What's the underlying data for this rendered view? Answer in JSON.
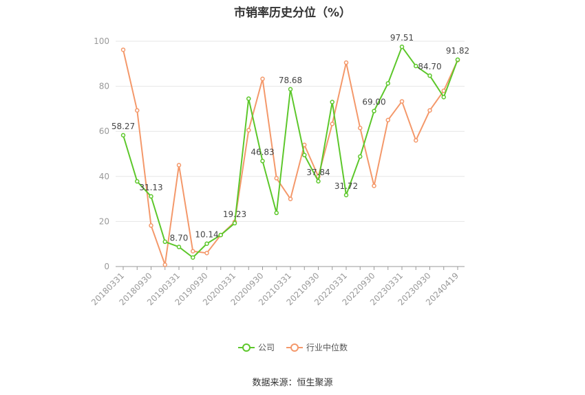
{
  "title": "市销率历史分位（%）",
  "source": "数据来源：恒生聚源",
  "colors": {
    "company": "#5cc72a",
    "industry": "#f4986a",
    "grid": "#e6e6e6",
    "axis": "#999999"
  },
  "legend": {
    "company": "公司",
    "industry": "行业中位数"
  },
  "chart_data": {
    "type": "line",
    "ylim": [
      0,
      100
    ],
    "yticks": [
      0,
      20,
      40,
      60,
      80,
      100
    ],
    "x_tick_labels": [
      "20180331",
      "20180930",
      "20190331",
      "20190930",
      "20200331",
      "20200930",
      "20210331",
      "20210930",
      "20220331",
      "20220930",
      "20230331",
      "20230930",
      "20240419"
    ],
    "x": [
      "20180331",
      "20180630",
      "20180930",
      "20181231",
      "20190331",
      "20190630",
      "20190930",
      "20191231",
      "20200331",
      "20200630",
      "20200930",
      "20201231",
      "20210331",
      "20210630",
      "20210930",
      "20211231",
      "20220331",
      "20220630",
      "20220930",
      "20221231",
      "20230331",
      "20230630",
      "20230930",
      "20231231",
      "20240419"
    ],
    "series": [
      {
        "name": "公司",
        "values": [
          58.27,
          37.8,
          31.13,
          11.0,
          8.7,
          4.0,
          10.14,
          14.0,
          19.23,
          74.5,
          46.83,
          23.8,
          78.68,
          49.5,
          37.84,
          73.0,
          31.72,
          48.8,
          69.0,
          81.3,
          97.51,
          89.0,
          84.7,
          75.2,
          91.82
        ],
        "labels": [
          "58.27",
          "",
          "31.13",
          "",
          "8.70",
          "",
          "10.14",
          "",
          "19.23",
          "",
          "46.83",
          "",
          "78.68",
          "",
          "37.84",
          "",
          "31.72",
          "",
          "69.00",
          "",
          "97.51",
          "",
          "84.70",
          "",
          "91.82"
        ]
      },
      {
        "name": "行业中位数",
        "values": [
          96.2,
          69.3,
          18.2,
          0.8,
          45.0,
          6.8,
          6.0,
          14.0,
          19.8,
          60.5,
          83.3,
          39.2,
          30.0,
          54.0,
          40.0,
          63.3,
          90.5,
          61.5,
          35.8,
          65.0,
          73.3,
          56.0,
          69.3,
          78.0,
          91.6
        ]
      }
    ]
  }
}
